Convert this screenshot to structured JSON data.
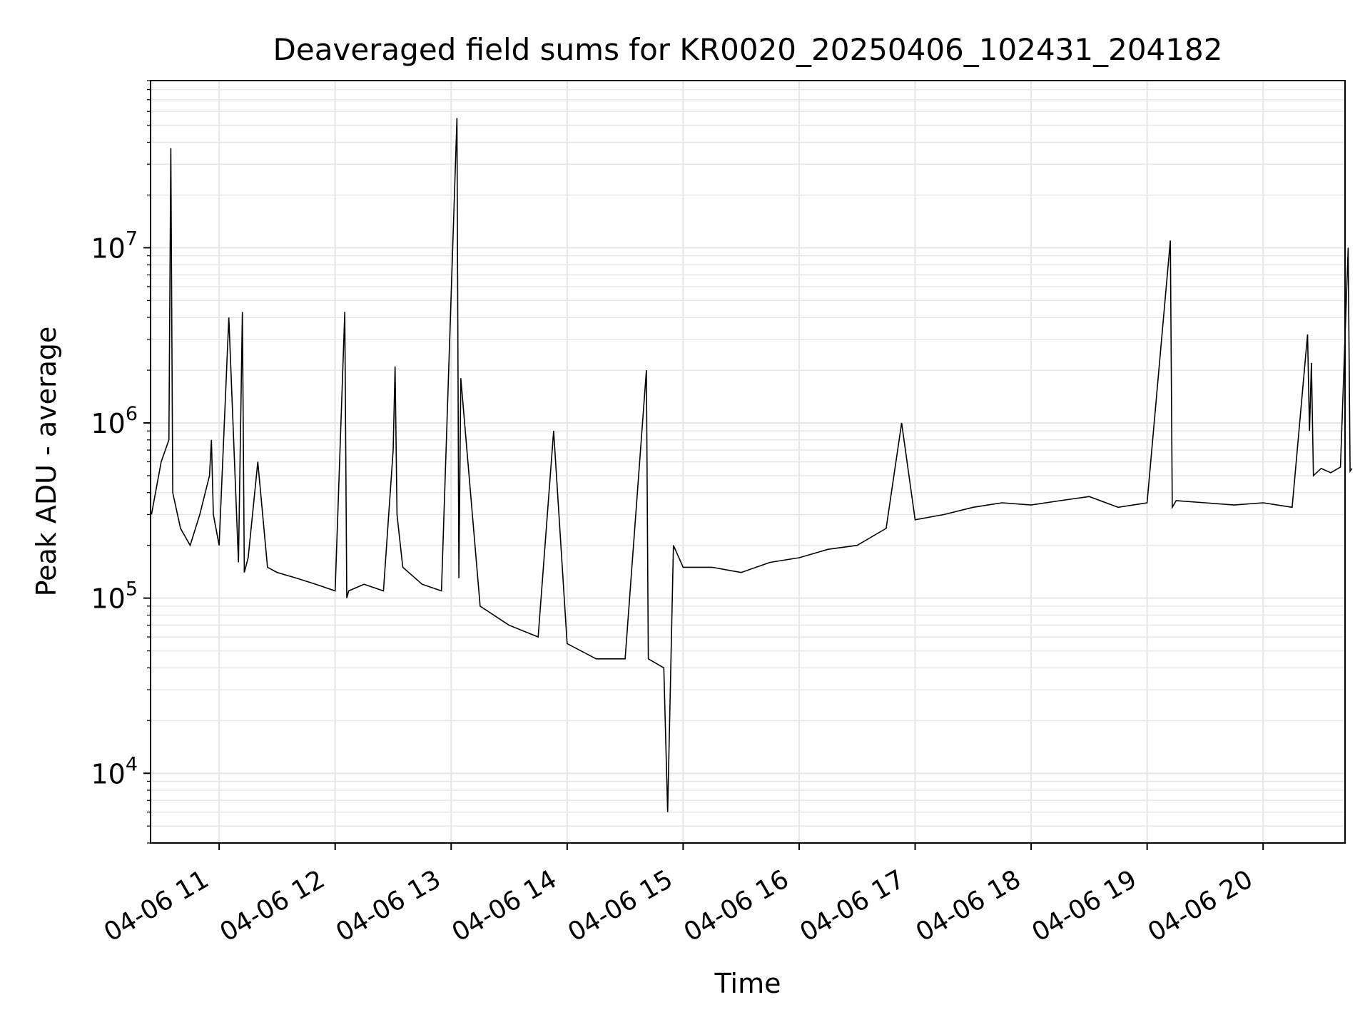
{
  "chart_data": {
    "type": "line",
    "title": "Deaveraged field sums for KR0020_20250406_102431_204182",
    "xlabel": "Time",
    "ylabel": "Peak ADU - average",
    "yscale": "log",
    "grid": true,
    "legend": "none",
    "x_range": [
      "2025-04-06 10:24:31",
      "2025-04-06 20:41:82"
    ],
    "y_range": [
      4000,
      90000000
    ],
    "x_ticks": [
      {
        "value": "2025-04-06 11:00",
        "label": "04-06 11"
      },
      {
        "value": "2025-04-06 12:00",
        "label": "04-06 12"
      },
      {
        "value": "2025-04-06 13:00",
        "label": "04-06 13"
      },
      {
        "value": "2025-04-06 14:00",
        "label": "04-06 14"
      },
      {
        "value": "2025-04-06 15:00",
        "label": "04-06 15"
      },
      {
        "value": "2025-04-06 16:00",
        "label": "04-06 16"
      },
      {
        "value": "2025-04-06 17:00",
        "label": "04-06 17"
      },
      {
        "value": "2025-04-06 18:00",
        "label": "04-06 18"
      },
      {
        "value": "2025-04-06 19:00",
        "label": "04-06 19"
      },
      {
        "value": "2025-04-06 20:00",
        "label": "04-06 20"
      }
    ],
    "y_ticks": [
      {
        "value": 10000,
        "base": "10",
        "exp": "4"
      },
      {
        "value": 100000,
        "base": "10",
        "exp": "5"
      },
      {
        "value": 1000000,
        "base": "10",
        "exp": "6"
      },
      {
        "value": 10000000,
        "base": "10",
        "exp": "7"
      }
    ],
    "line_color": "#000000",
    "grid_color": "#e6e6e6",
    "series": [
      {
        "x": [
          "2025-04-06 10:25",
          "2025-04-06 10:30",
          "2025-04-06 10:34",
          "2025-04-06 10:35",
          "2025-04-06 10:36",
          "2025-04-06 10:40",
          "2025-04-06 10:45",
          "2025-04-06 10:50",
          "2025-04-06 10:55",
          "2025-04-06 10:56",
          "2025-04-06 10:57",
          "2025-04-06 11:00",
          "2025-04-06 11:05",
          "2025-04-06 11:10",
          "2025-04-06 11:12",
          "2025-04-06 11:13",
          "2025-04-06 11:15",
          "2025-04-06 11:20",
          "2025-04-06 11:25",
          "2025-04-06 11:30",
          "2025-04-06 11:40",
          "2025-04-06 11:50",
          "2025-04-06 12:00",
          "2025-04-06 12:05",
          "2025-04-06 12:06",
          "2025-04-06 12:07",
          "2025-04-06 12:15",
          "2025-04-06 12:25",
          "2025-04-06 12:30",
          "2025-04-06 12:31",
          "2025-04-06 12:32",
          "2025-04-06 12:35",
          "2025-04-06 12:45",
          "2025-04-06 12:55",
          "2025-04-06 13:03",
          "2025-04-06 13:04",
          "2025-04-06 13:05",
          "2025-04-06 13:15",
          "2025-04-06 13:30",
          "2025-04-06 13:45",
          "2025-04-06 13:53",
          "2025-04-06 14:00",
          "2025-04-06 14:15",
          "2025-04-06 14:30",
          "2025-04-06 14:41",
          "2025-04-06 14:42",
          "2025-04-06 14:50",
          "2025-04-06 14:52",
          "2025-04-06 14:55",
          "2025-04-06 15:00",
          "2025-04-06 15:15",
          "2025-04-06 15:30",
          "2025-04-06 15:45",
          "2025-04-06 16:00",
          "2025-04-06 16:15",
          "2025-04-06 16:30",
          "2025-04-06 16:45",
          "2025-04-06 16:53",
          "2025-04-06 17:00",
          "2025-04-06 17:15",
          "2025-04-06 17:30",
          "2025-04-06 17:45",
          "2025-04-06 18:00",
          "2025-04-06 18:15",
          "2025-04-06 18:30",
          "2025-04-06 18:45",
          "2025-04-06 19:00",
          "2025-04-06 19:12",
          "2025-04-06 19:13",
          "2025-04-06 19:15",
          "2025-04-06 19:30",
          "2025-04-06 19:45",
          "2025-04-06 20:00",
          "2025-04-06 20:15",
          "2025-04-06 20:23",
          "2025-04-06 20:24",
          "2025-04-06 20:25",
          "2025-04-06 20:26",
          "2025-04-06 20:30",
          "2025-04-06 20:35",
          "2025-04-06 20:40",
          "2025-04-06 20:44",
          "2025-04-06 20:45",
          "2025-04-06 20:46"
        ],
        "y": [
          300000,
          600000,
          800000,
          37000000,
          400000,
          250000,
          200000,
          300000,
          500000,
          800000,
          300000,
          200000,
          4000000,
          160000,
          4300000,
          140000,
          170000,
          600000,
          150000,
          140000,
          130000,
          120000,
          110000,
          4300000,
          100000,
          110000,
          120000,
          110000,
          700000,
          2100000,
          300000,
          150000,
          120000,
          110000,
          55000000,
          130000,
          1800000,
          90000,
          70000,
          60000,
          900000,
          55000,
          45000,
          45000,
          2000000,
          45000,
          40000,
          6000,
          200000,
          150000,
          150000,
          140000,
          160000,
          170000,
          190000,
          200000,
          250000,
          1000000,
          280000,
          300000,
          330000,
          350000,
          340000,
          360000,
          380000,
          330000,
          350000,
          11000000,
          330000,
          360000,
          350000,
          340000,
          350000,
          330000,
          3200000,
          900000,
          2200000,
          500000,
          550000,
          520000,
          560000,
          10000000,
          530000,
          550000
        ]
      }
    ]
  }
}
